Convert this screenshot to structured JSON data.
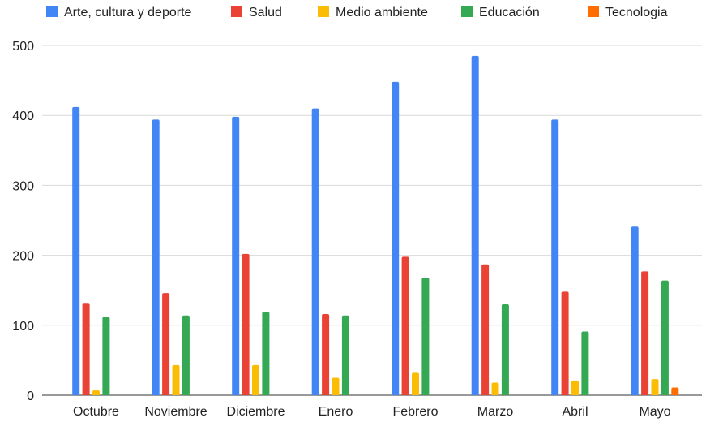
{
  "colors": {
    "Arte, cultura y deporte": "#4285f4",
    "Salud": "#ea4335",
    "Medio ambiente": "#fbbc04",
    "Educación": "#34a853",
    "Tecnologia": "#ff6d01"
  },
  "chart_data": {
    "type": "bar",
    "title": "",
    "xlabel": "",
    "ylabel": "",
    "ylim": [
      0,
      500
    ],
    "yticks": [
      0,
      100,
      200,
      300,
      400,
      500
    ],
    "grid": true,
    "legend_position": "top",
    "categories": [
      "Octubre",
      "Noviembre",
      "Diciembre",
      "Enero",
      "Febrero",
      "Marzo",
      "Abril",
      "Mayo"
    ],
    "series": [
      {
        "name": "Arte, cultura y deporte",
        "values": [
          412,
          394,
          398,
          410,
          448,
          485,
          394,
          241
        ]
      },
      {
        "name": "Salud",
        "values": [
          132,
          146,
          202,
          116,
          198,
          187,
          148,
          177
        ]
      },
      {
        "name": "Medio ambiente",
        "values": [
          7,
          43,
          43,
          25,
          32,
          18,
          21,
          23
        ]
      },
      {
        "name": "Educación",
        "values": [
          112,
          114,
          119,
          114,
          168,
          130,
          91,
          164
        ]
      },
      {
        "name": "Tecnologia",
        "values": [
          0,
          0,
          0,
          0,
          0,
          0,
          0,
          11
        ]
      }
    ]
  }
}
